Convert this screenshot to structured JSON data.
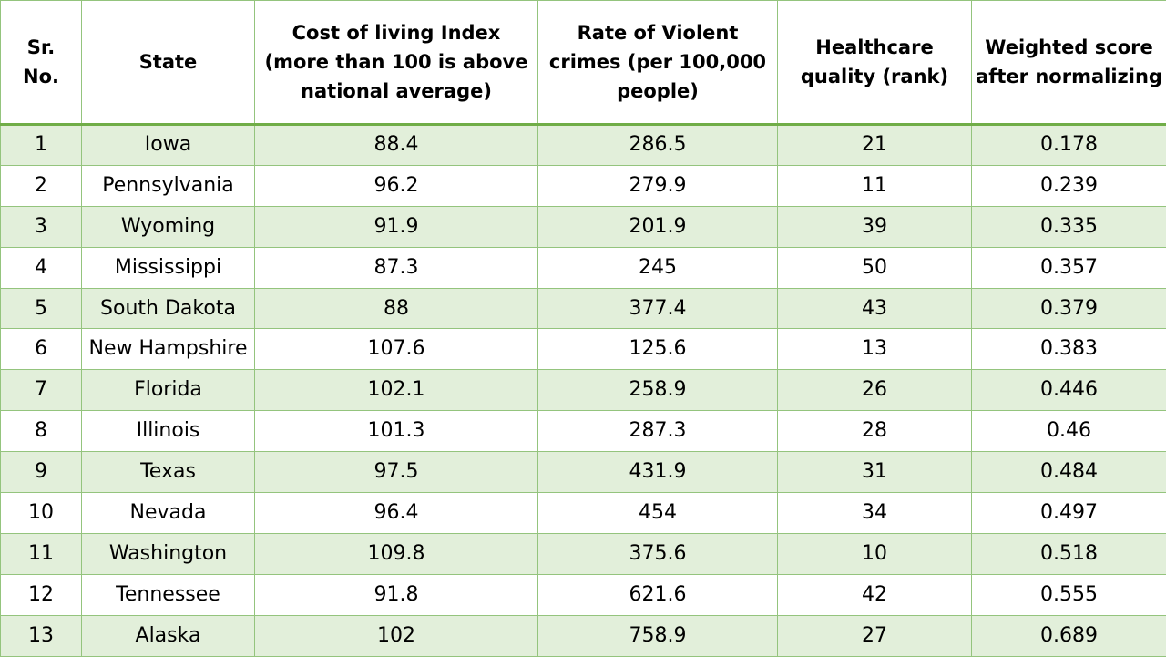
{
  "table": {
    "headers": [
      "Sr. No.",
      "State",
      "Cost of living Index (more than 100 is above national average)",
      "Rate of Violent crimes (per 100,000 people)",
      "Healthcare quality (rank)",
      "Weighted score after normalizing"
    ],
    "rows": [
      [
        "1",
        "Iowa",
        "88.4",
        "286.5",
        "21",
        "0.178"
      ],
      [
        "2",
        "Pennsylvania",
        "96.2",
        "279.9",
        "11",
        "0.239"
      ],
      [
        "3",
        "Wyoming",
        "91.9",
        "201.9",
        "39",
        "0.335"
      ],
      [
        "4",
        "Mississippi",
        "87.3",
        "245",
        "50",
        "0.357"
      ],
      [
        "5",
        "South Dakota",
        "88",
        "377.4",
        "43",
        "0.379"
      ],
      [
        "6",
        "New Hampshire",
        "107.6",
        "125.6",
        "13",
        "0.383"
      ],
      [
        "7",
        "Florida",
        "102.1",
        "258.9",
        "26",
        "0.446"
      ],
      [
        "8",
        "Illinois",
        "101.3",
        "287.3",
        "28",
        "0.46"
      ],
      [
        "9",
        "Texas",
        "97.5",
        "431.9",
        "31",
        "0.484"
      ],
      [
        "10",
        "Nevada",
        "96.4",
        "454",
        "34",
        "0.497"
      ],
      [
        "11",
        "Washington",
        "109.8",
        "375.6",
        "10",
        "0.518"
      ],
      [
        "12",
        "Tennessee",
        "91.8",
        "621.6",
        "42",
        "0.555"
      ],
      [
        "13",
        "Alaska",
        "102",
        "758.9",
        "27",
        "0.689"
      ]
    ]
  },
  "colors": {
    "band": "#e2efda",
    "border": "#94c47d",
    "header_rule": "#70ad47"
  }
}
